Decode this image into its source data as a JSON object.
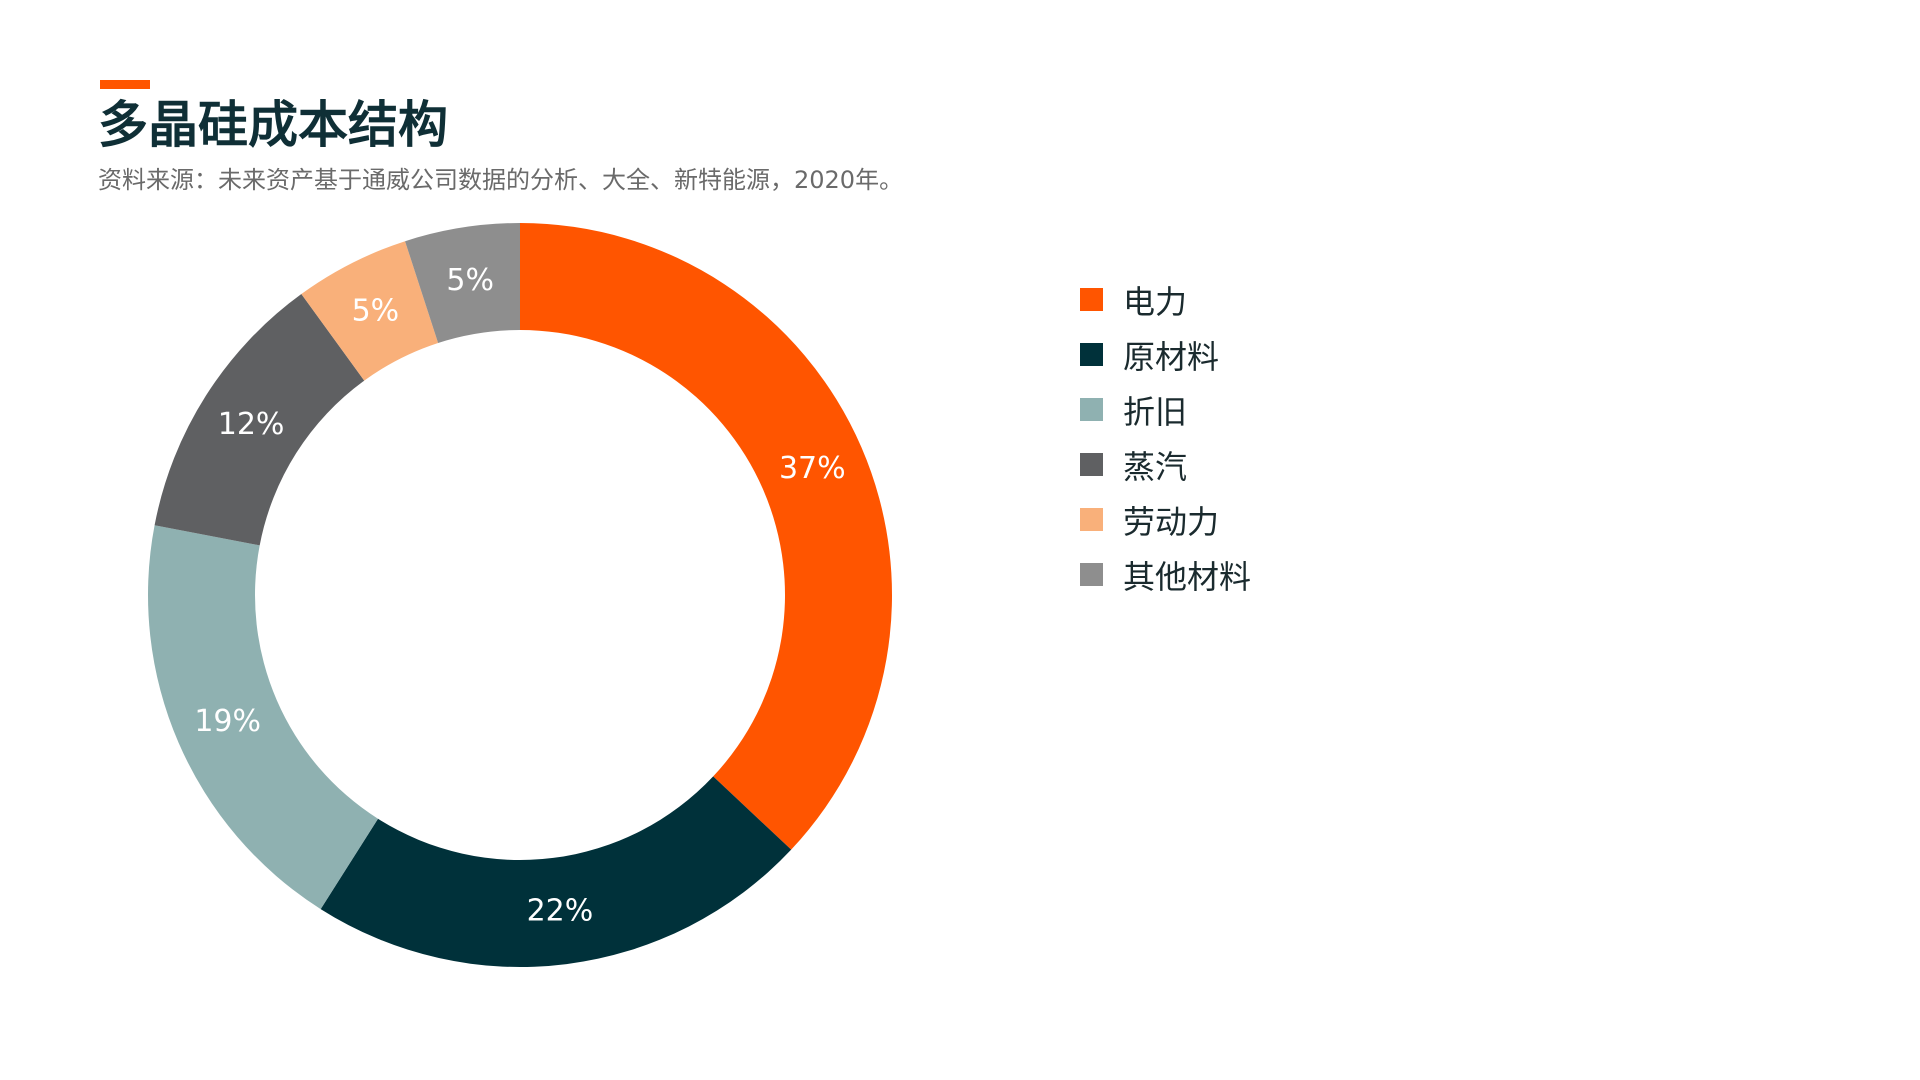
{
  "title": "多晶硅成本结构",
  "source": "资料来源：未来资产基于通威公司数据的分析、大全、新特能源，2020年。",
  "colors": {
    "accent": "#ff5500",
    "title": "#0f2f36"
  },
  "chart_data": {
    "type": "pie",
    "donut": true,
    "legend_position": "right",
    "slices": [
      {
        "name": "电力",
        "value": 37,
        "label": "37%",
        "color": "#ff5500"
      },
      {
        "name": "原材料",
        "value": 22,
        "label": "22%",
        "color": "#00313a"
      },
      {
        "name": "折旧",
        "value": 19,
        "label": "19%",
        "color": "#8fb1b1"
      },
      {
        "name": "蒸汽",
        "value": 12,
        "label": "12%",
        "color": "#5f6062"
      },
      {
        "name": "劳动力",
        "value": 5,
        "label": "5%",
        "color": "#f9b07a"
      },
      {
        "name": "其他材料",
        "value": 5,
        "label": "5%",
        "color": "#8e8e8e"
      }
    ]
  }
}
